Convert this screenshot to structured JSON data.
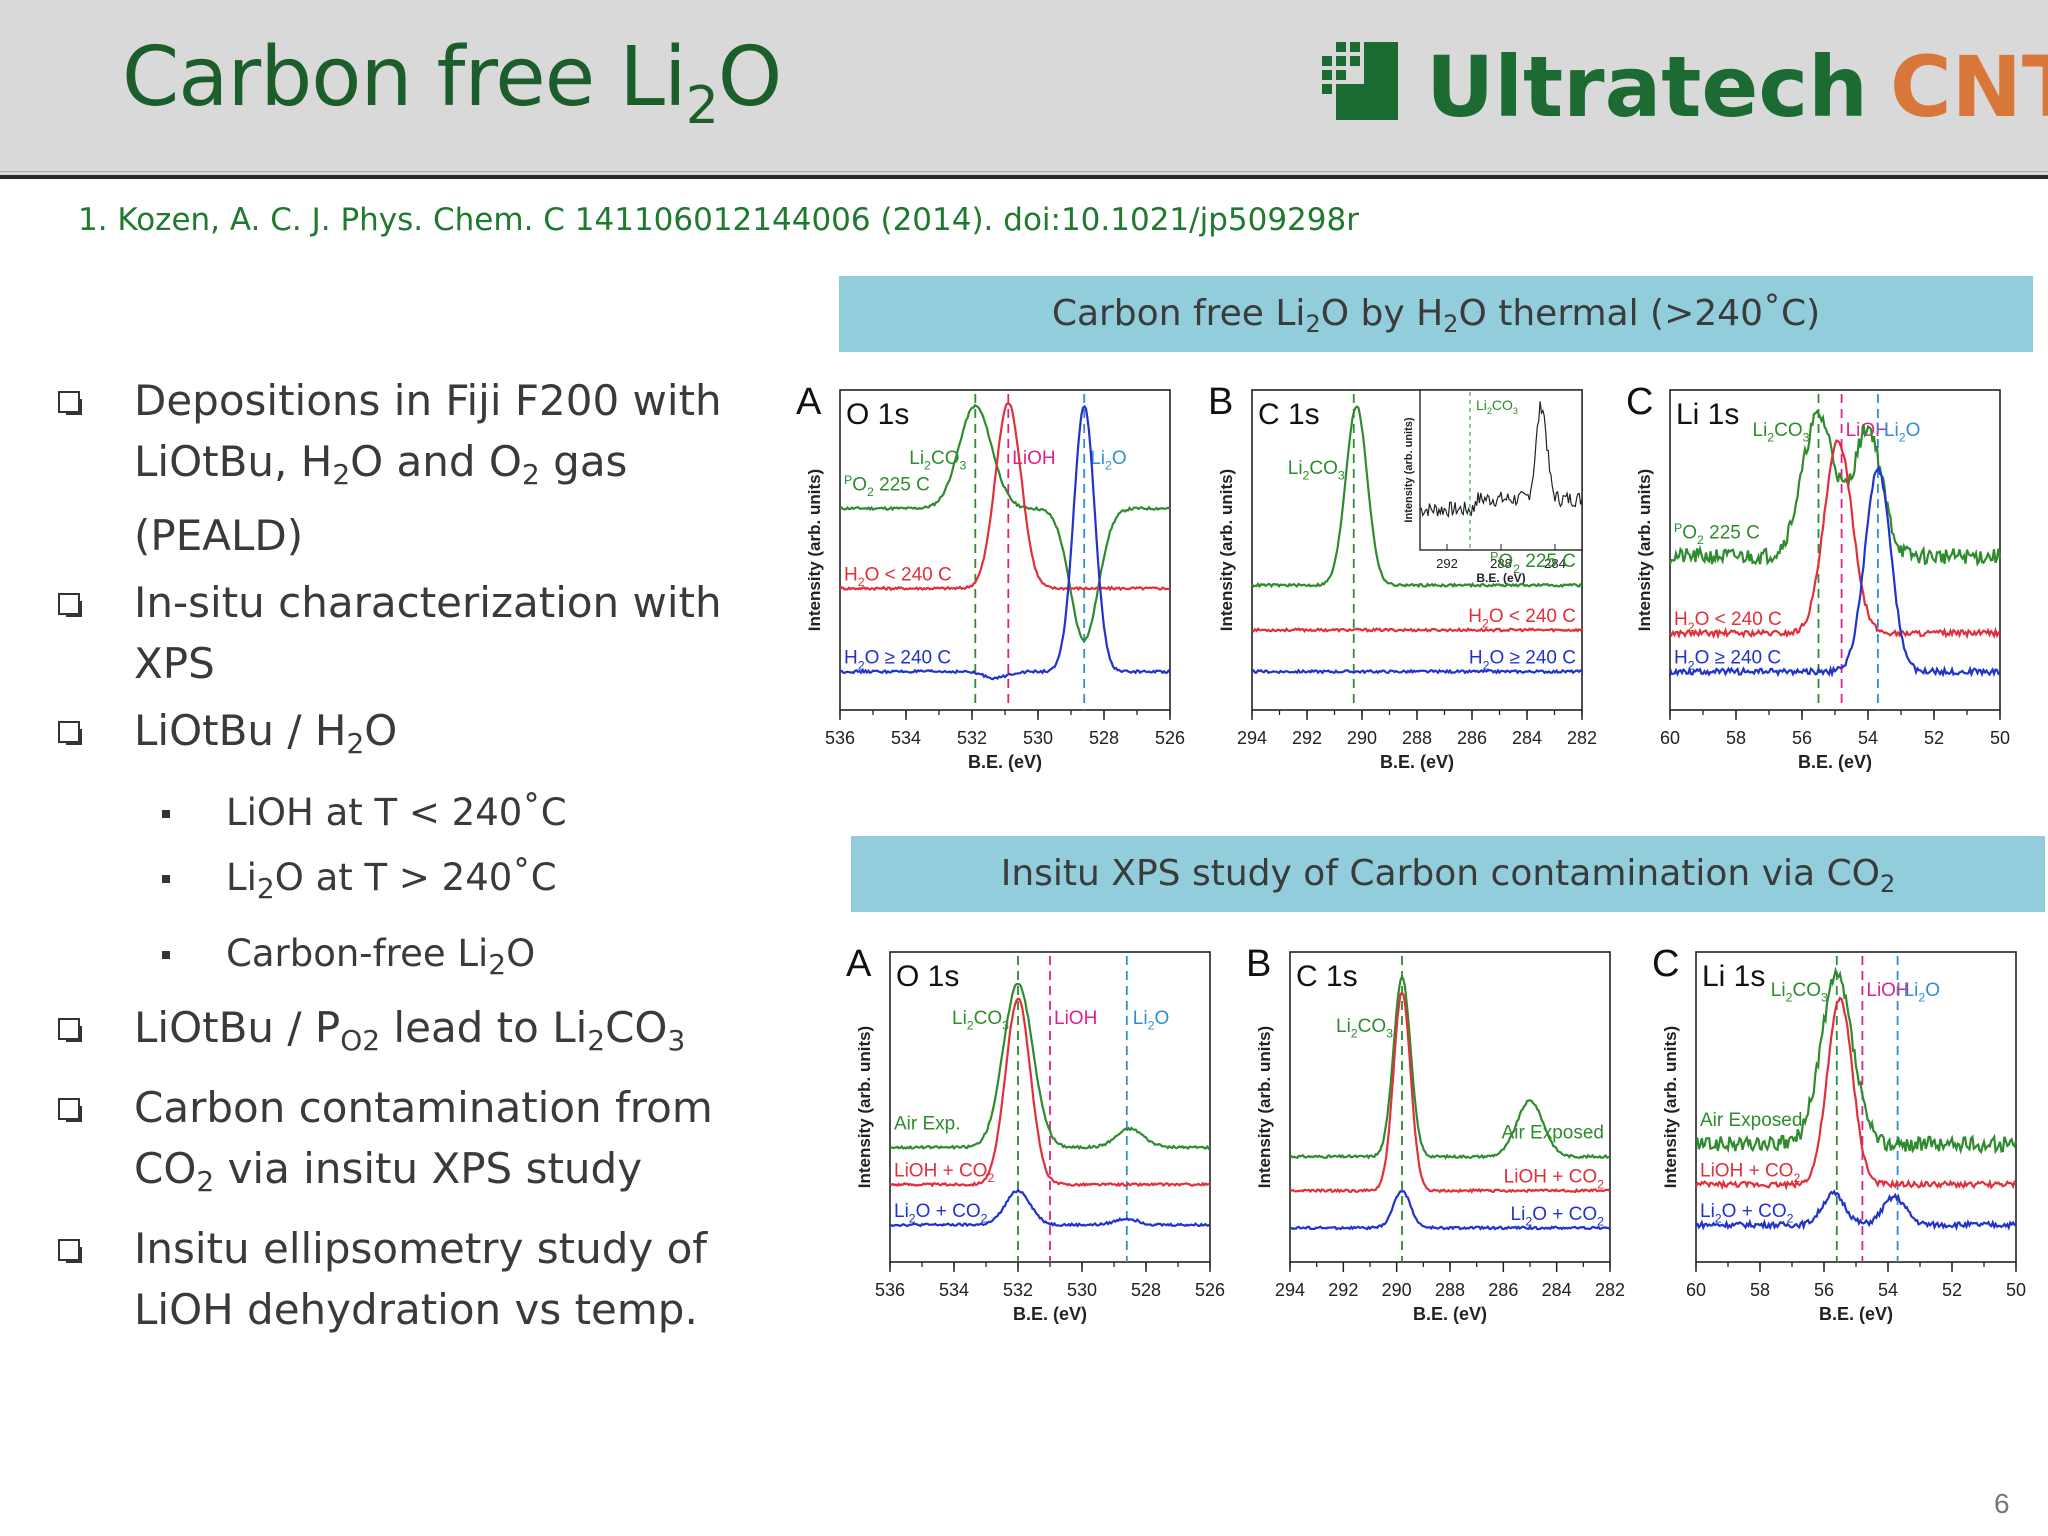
{
  "slide": {
    "title_main": "Carbon free Li",
    "title_sub": "2",
    "title_end": "O",
    "logo_ultratech": "Ultratech",
    "logo_cnt": "CNT",
    "reference": "1. Kozen, A. C. J. Phys. Chem. C 141106012144006  (2014). doi:10.1021/jp509298r",
    "page_number": "6"
  },
  "bullets": [
    {
      "level": 1,
      "parts": [
        {
          "t": "Depositions  in Fiji F200 with LiOtBu, H"
        },
        {
          "s": "2"
        },
        {
          "t": "O and O"
        },
        {
          "s": "2"
        },
        {
          "t": " gas (PEALD)"
        }
      ]
    },
    {
      "level": 1,
      "parts": [
        {
          "t": "In-situ characterization with XPS"
        }
      ]
    },
    {
      "level": 1,
      "parts": [
        {
          "t": "LiOtBu / H"
        },
        {
          "s": "2"
        },
        {
          "t": "O"
        }
      ]
    },
    {
      "level": 2,
      "parts": [
        {
          "t": "LiOH at T < 240˚C"
        }
      ]
    },
    {
      "level": 2,
      "parts": [
        {
          "t": "Li"
        },
        {
          "s": "2"
        },
        {
          "t": "O at T > 240˚C"
        }
      ]
    },
    {
      "level": 2,
      "parts": [
        {
          "t": "Carbon-free Li"
        },
        {
          "s": "2"
        },
        {
          "t": "O"
        }
      ]
    },
    {
      "level": 1,
      "parts": [
        {
          "t": "LiOtBu / P"
        },
        {
          "s": "O2"
        },
        {
          "t": " lead to Li"
        },
        {
          "s": "2"
        },
        {
          "t": "CO"
        },
        {
          "s": "3"
        }
      ]
    },
    {
      "level": 1,
      "parts": [
        {
          "t": "Carbon contamination  from CO"
        },
        {
          "s": "2"
        },
        {
          "t": " via insitu XPS study"
        }
      ]
    },
    {
      "level": 1,
      "parts": [
        {
          "t": "Insitu ellipsometry  study of LiOH dehydration  vs temp."
        }
      ]
    }
  ],
  "banners": {
    "top": [
      {
        "t": "Carbon free Li"
      },
      {
        "s": "2"
      },
      {
        "t": "O by H"
      },
      {
        "s": "2"
      },
      {
        "t": "O thermal (>240˚C)"
      }
    ],
    "bottom": [
      {
        "t": "Insitu XPS study  of Carbon contamination via CO"
      },
      {
        "s": "2"
      }
    ]
  },
  "colors": {
    "green": "#2e8b2e",
    "red": "#e0303a",
    "blue": "#2233cc",
    "magenta": "#e0208a",
    "lightblue": "#2f8fd0"
  },
  "chart_data": [
    {
      "type": "line",
      "figure": "top",
      "panels": [
        {
          "letter": "A",
          "title": "O 1s",
          "xlabel": "B.E. (eV)",
          "ylabel": "Intensity (arb. units)",
          "xlim": [
            536,
            526
          ],
          "xticks": [
            536,
            534,
            532,
            530,
            528,
            526
          ],
          "vlines": [
            {
              "x": 531.9,
              "label": "Li2CO3",
              "color": "green"
            },
            {
              "x": 530.9,
              "label": "LiOH",
              "color": "magenta"
            },
            {
              "x": 528.6,
              "label": "Li2O",
              "color": "lightblue"
            }
          ],
          "series": [
            {
              "name": "PO2 225 C",
              "color": "green",
              "base": 0.63,
              "peaks": [
                {
                  "x": 531.9,
                  "h": 0.95,
                  "w": 0.7
                },
                {
                  "x": 528.6,
                  "h": 0.22,
                  "w": 0.6
                }
              ]
            },
            {
              "name": "H2O < 240 C",
              "color": "red",
              "base": 0.38,
              "peaks": [
                {
                  "x": 530.9,
                  "h": 0.96,
                  "w": 0.55
                }
              ]
            },
            {
              "name": "H2O ≥ 240 C",
              "color": "blue",
              "base": 0.12,
              "peaks": [
                {
                  "x": 531.3,
                  "h": 0.1,
                  "w": 0.5
                },
                {
                  "x": 528.6,
                  "h": 0.95,
                  "w": 0.45
                }
              ]
            }
          ]
        },
        {
          "letter": "B",
          "title": "C 1s",
          "xlabel": "B.E. (eV)",
          "ylabel": "Intensity (arb. units)",
          "xlim": [
            294,
            282
          ],
          "xticks": [
            294,
            292,
            290,
            288,
            286,
            284,
            282
          ],
          "vlines": [
            {
              "x": 290.3,
              "label": "Li2CO3",
              "color": "green"
            }
          ],
          "series": [
            {
              "name": "PO2 225 C",
              "color": "green",
              "base": 0.39,
              "peaks": [
                {
                  "x": 290.2,
                  "h": 0.95,
                  "w": 0.55
                }
              ]
            },
            {
              "name": "H2O < 240 C",
              "color": "red",
              "base": 0.25,
              "peaks": []
            },
            {
              "name": "H2O ≥ 240 C",
              "color": "blue",
              "base": 0.12,
              "peaks": []
            }
          ],
          "inset": {
            "xticks": [
              292,
              288,
              284
            ],
            "xlabel": "B.E. (eV)",
            "ylabel": "Intensity (arb. units)",
            "label": "Li2CO3",
            "peak_x": 285.0
          }
        },
        {
          "letter": "C",
          "title": "Li 1s",
          "xlabel": "B.E. (eV)",
          "ylabel": "Intensity (arb. units)",
          "xlim": [
            60,
            50
          ],
          "xticks": [
            60,
            58,
            56,
            54,
            52,
            50
          ],
          "vlines": [
            {
              "x": 55.5,
              "label": "Li2CO3",
              "color": "green"
            },
            {
              "x": 54.8,
              "label": "LiOH",
              "color": "magenta"
            },
            {
              "x": 53.7,
              "label": "Li2O",
              "color": "lightblue"
            }
          ],
          "series": [
            {
              "name": "PO2 225 C",
              "color": "green",
              "base": 0.48,
              "peaks": [
                {
                  "x": 55.5,
                  "h": 0.92,
                  "w": 0.7
                },
                {
                  "x": 54.0,
                  "h": 0.88,
                  "w": 0.6
                }
              ]
            },
            {
              "name": "H2O < 240 C",
              "color": "red",
              "base": 0.24,
              "peaks": [
                {
                  "x": 54.9,
                  "h": 0.84,
                  "w": 0.6
                }
              ]
            },
            {
              "name": "H2O ≥ 240 C",
              "color": "blue",
              "base": 0.12,
              "peaks": [
                {
                  "x": 53.7,
                  "h": 0.75,
                  "w": 0.55
                }
              ]
            }
          ]
        }
      ]
    },
    {
      "type": "line",
      "figure": "bottom",
      "panels": [
        {
          "letter": "A",
          "title": "O 1s",
          "xlabel": "B.E. (eV)",
          "ylabel": "Intensity (arb. units)",
          "xlim": [
            536,
            526
          ],
          "xticks": [
            536,
            534,
            532,
            530,
            528,
            526
          ],
          "vlines": [
            {
              "x": 532.0,
              "label": "Li2CO3",
              "color": "green"
            },
            {
              "x": 531.0,
              "label": "LiOH",
              "color": "magenta"
            },
            {
              "x": 528.6,
              "label": "Li2O",
              "color": "lightblue"
            }
          ],
          "series": [
            {
              "name": "Air Exp.",
              "color": "green",
              "base": 0.37,
              "peaks": [
                {
                  "x": 532.0,
                  "h": 0.9,
                  "w": 0.65
                },
                {
                  "x": 528.5,
                  "h": 0.43,
                  "w": 0.6
                }
              ]
            },
            {
              "name": "LiOH + CO2",
              "color": "red",
              "base": 0.25,
              "peaks": [
                {
                  "x": 532.0,
                  "h": 0.85,
                  "w": 0.55
                }
              ]
            },
            {
              "name": "Li2O + CO2",
              "color": "blue",
              "base": 0.12,
              "peaks": [
                {
                  "x": 532.0,
                  "h": 0.23,
                  "w": 0.55
                },
                {
                  "x": 528.6,
                  "h": 0.14,
                  "w": 0.5
                }
              ]
            }
          ]
        },
        {
          "letter": "B",
          "title": "C 1s",
          "xlabel": "B.E. (eV)",
          "ylabel": "Intensity (arb. units)",
          "xlim": [
            294,
            282
          ],
          "xticks": [
            294,
            292,
            290,
            288,
            286,
            284,
            282
          ],
          "vlines": [
            {
              "x": 289.8,
              "label": "Li2CO3",
              "color": "green"
            }
          ],
          "series": [
            {
              "name": "Air Exposed",
              "color": "green",
              "base": 0.34,
              "peaks": [
                {
                  "x": 289.8,
                  "h": 0.92,
                  "w": 0.45
                },
                {
                  "x": 285.0,
                  "h": 0.52,
                  "w": 0.7
                }
              ]
            },
            {
              "name": "LiOH + CO2",
              "color": "red",
              "base": 0.23,
              "peaks": [
                {
                  "x": 289.8,
                  "h": 0.87,
                  "w": 0.45
                }
              ]
            },
            {
              "name": "Li2O + CO2",
              "color": "blue",
              "base": 0.11,
              "peaks": [
                {
                  "x": 289.8,
                  "h": 0.23,
                  "w": 0.45
                }
              ]
            }
          ]
        },
        {
          "letter": "C",
          "title": "Li 1s",
          "xlabel": "B.E. (eV)",
          "ylabel": "Intensity (arb. units)",
          "xlim": [
            60,
            50
          ],
          "xticks": [
            60,
            58,
            56,
            54,
            52,
            50
          ],
          "vlines": [
            {
              "x": 55.6,
              "label": "Li2CO3",
              "color": "green"
            },
            {
              "x": 54.8,
              "label": "LiOH",
              "color": "magenta"
            },
            {
              "x": 53.7,
              "label": "Li2O",
              "color": "lightblue"
            }
          ],
          "series": [
            {
              "name": "Air Exposed",
              "color": "green",
              "base": 0.38,
              "peaks": [
                {
                  "x": 55.6,
                  "h": 0.92,
                  "w": 0.7
                }
              ]
            },
            {
              "name": "LiOH + CO2",
              "color": "red",
              "base": 0.25,
              "peaks": [
                {
                  "x": 55.5,
                  "h": 0.85,
                  "w": 0.55
                }
              ]
            },
            {
              "name": "Li2O + CO2",
              "color": "blue",
              "base": 0.12,
              "peaks": [
                {
                  "x": 55.7,
                  "h": 0.22,
                  "w": 0.5
                },
                {
                  "x": 53.8,
                  "h": 0.21,
                  "w": 0.5
                }
              ]
            }
          ]
        }
      ]
    }
  ]
}
